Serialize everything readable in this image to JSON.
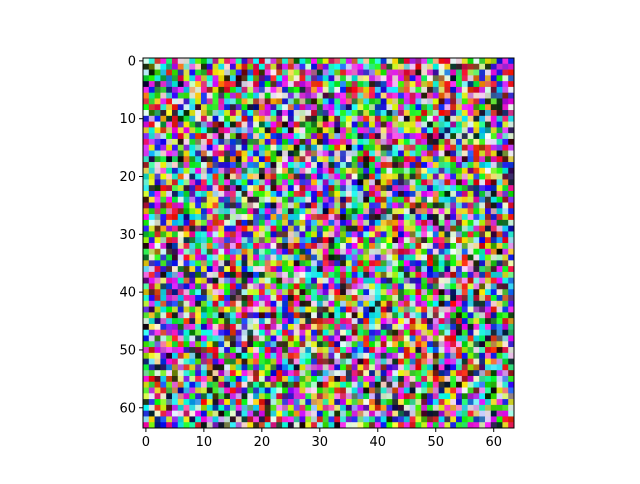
{
  "chart_data": {
    "type": "heatmap",
    "description_kind": "imshow RGB image",
    "rows": 64,
    "cols": 64,
    "xlim": [
      -0.5,
      63.5
    ],
    "ylim": [
      63.5,
      -0.5
    ],
    "x_ticks": [
      "0",
      "10",
      "20",
      "30",
      "40",
      "50",
      "60"
    ],
    "y_ticks": [
      "0",
      "10",
      "20",
      "30",
      "40",
      "50",
      "60"
    ],
    "title": "",
    "xlabel": "",
    "ylabel": "",
    "grid": false
  }
}
